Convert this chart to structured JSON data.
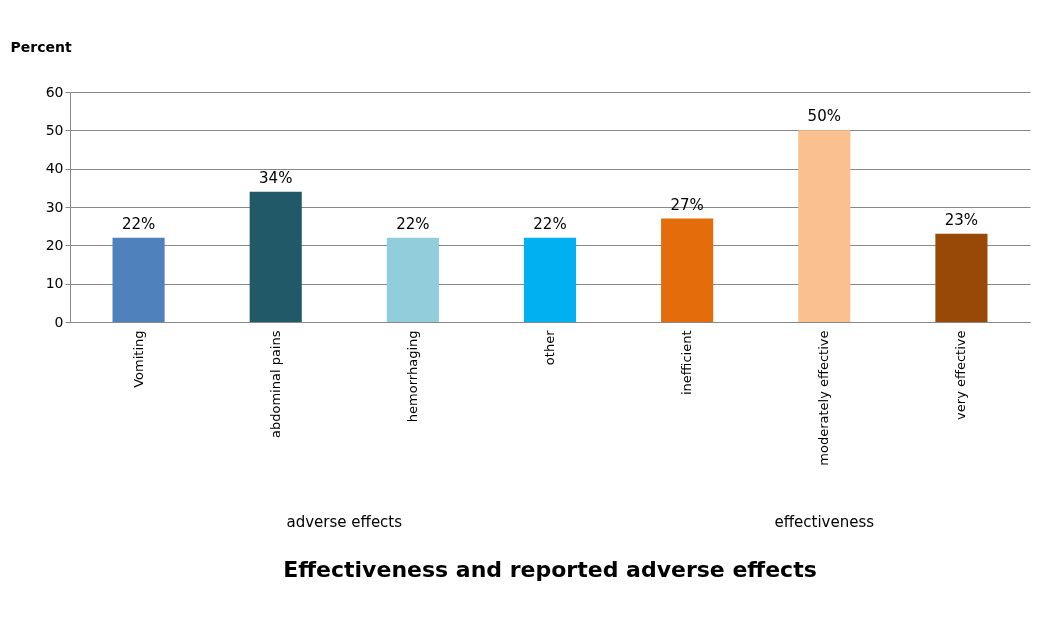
{
  "chart_data": {
    "type": "bar",
    "title": "Effectiveness and reported adverse effects",
    "ylabel": "Percent",
    "categories": [
      "Vomiting",
      "abdominal pains",
      "hemorrhaging",
      "other",
      "inefficient",
      "moderately effective",
      "very effective"
    ],
    "values": [
      22,
      34,
      22,
      22,
      27,
      50,
      23
    ],
    "colors": [
      "#4f81bd",
      "#215968",
      "#92cddc",
      "#00b0f0",
      "#e46c0a",
      "#fac090",
      "#984807"
    ],
    "value_labels": [
      "22%",
      "34%",
      "22%",
      "22%",
      "27%",
      "50%",
      "23%"
    ],
    "annotations": [
      "adverse  effects",
      "effectiveness"
    ],
    "ylim": [
      0,
      60
    ],
    "yticks": [
      0,
      10,
      20,
      30,
      40,
      50,
      60
    ],
    "grid": "y"
  }
}
